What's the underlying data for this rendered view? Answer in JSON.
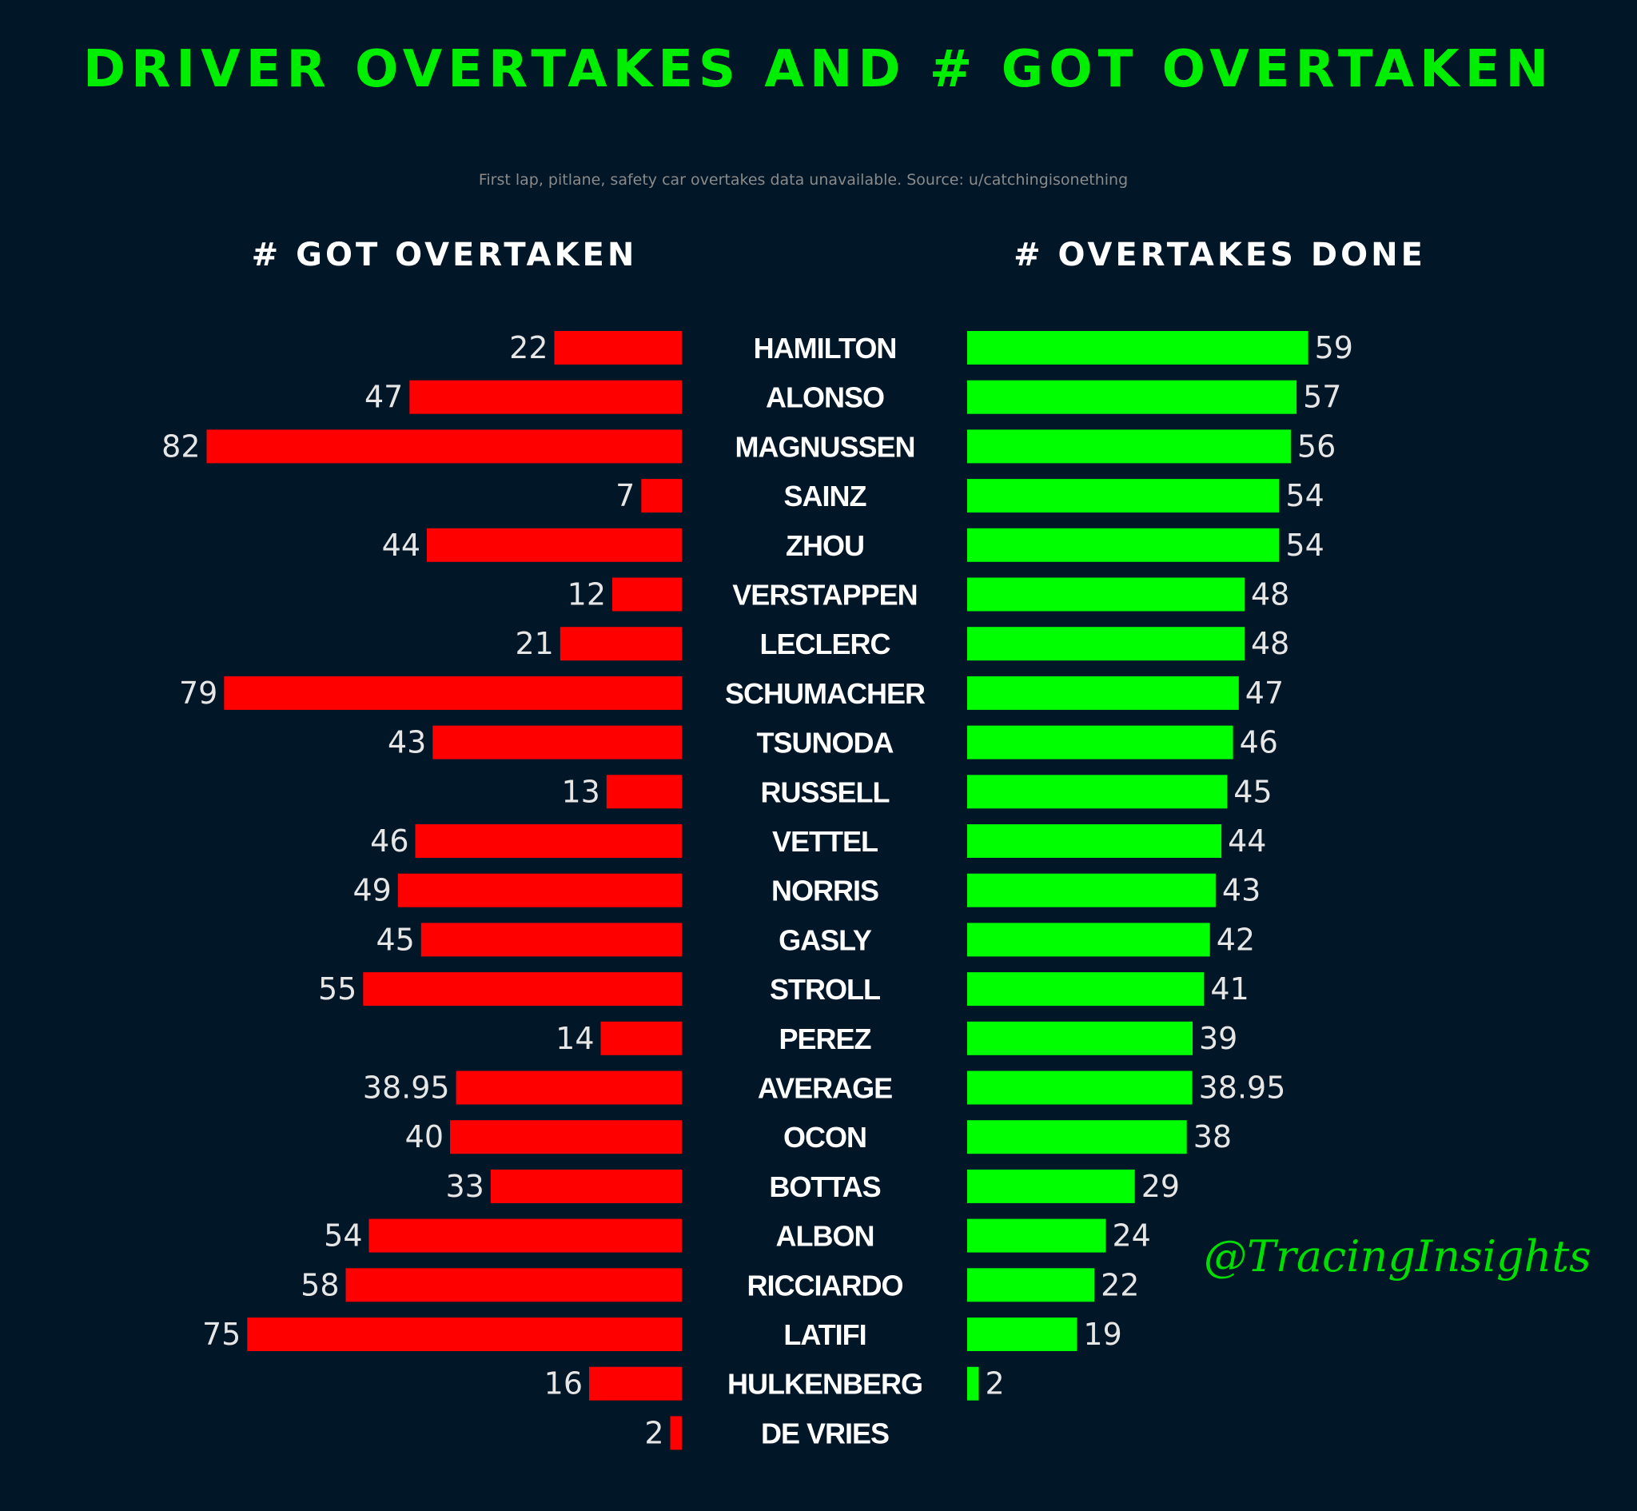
{
  "title": "DRIVER OVERTAKES AND # GOT OVERTAKEN",
  "subtitle": "First lap, pitlane, safety car overtakes data unavailable. Source: u/catchingisonething",
  "watermark": "@TracingInsights",
  "colors": {
    "background": "#011627",
    "title": "#00ee00",
    "got_overtaken_bar": "#ff0000",
    "overtakes_done_bar": "#00ff00",
    "value_text": "#e6e6e6",
    "driver_text": "#ffffff",
    "subtitle": "#8a8a8a"
  },
  "chart_data": {
    "type": "bar",
    "orientation": "horizontal",
    "layout": "diverging",
    "categories": [
      "HAMILTON",
      "ALONSO",
      "MAGNUSSEN",
      "SAINZ",
      "ZHOU",
      "VERSTAPPEN",
      "LECLERC",
      "SCHUMACHER",
      "TSUNODA",
      "RUSSELL",
      "VETTEL",
      "NORRIS",
      "GASLY",
      "STROLL",
      "PEREZ",
      "AVERAGE",
      "OCON",
      "BOTTAS",
      "ALBON",
      "RICCIARDO",
      "LATIFI",
      "HULKENBERG",
      "DE VRIES"
    ],
    "series": [
      {
        "name": "# GOT OVERTAKEN",
        "side": "left",
        "values": [
          22,
          47,
          82,
          7,
          44,
          12,
          21,
          79,
          43,
          13,
          46,
          49,
          45,
          55,
          14,
          38.95,
          40,
          33,
          54,
          58,
          75,
          16,
          2
        ],
        "labels": [
          "22",
          "47",
          "82",
          "7",
          "44",
          "12",
          "21",
          "79",
          "43",
          "13",
          "46",
          "49",
          "45",
          "55",
          "14",
          "38.95",
          "40",
          "33",
          "54",
          "58",
          "75",
          "16",
          "2"
        ]
      },
      {
        "name": "# OVERTAKES DONE",
        "side": "right",
        "values": [
          59,
          57,
          56,
          54,
          54,
          48,
          48,
          47,
          46,
          45,
          44,
          43,
          42,
          41,
          39,
          38.95,
          38,
          29,
          24,
          22,
          19,
          2,
          null
        ],
        "labels": [
          "59",
          "57",
          "56",
          "54",
          "54",
          "48",
          "48",
          "47",
          "46",
          "45",
          "44",
          "43",
          "42",
          "41",
          "39",
          "38.95",
          "38",
          "29",
          "24",
          "22",
          "19",
          "2",
          null
        ]
      }
    ],
    "xlabel": "",
    "ylabel": "",
    "grid": false,
    "legend": "none"
  }
}
